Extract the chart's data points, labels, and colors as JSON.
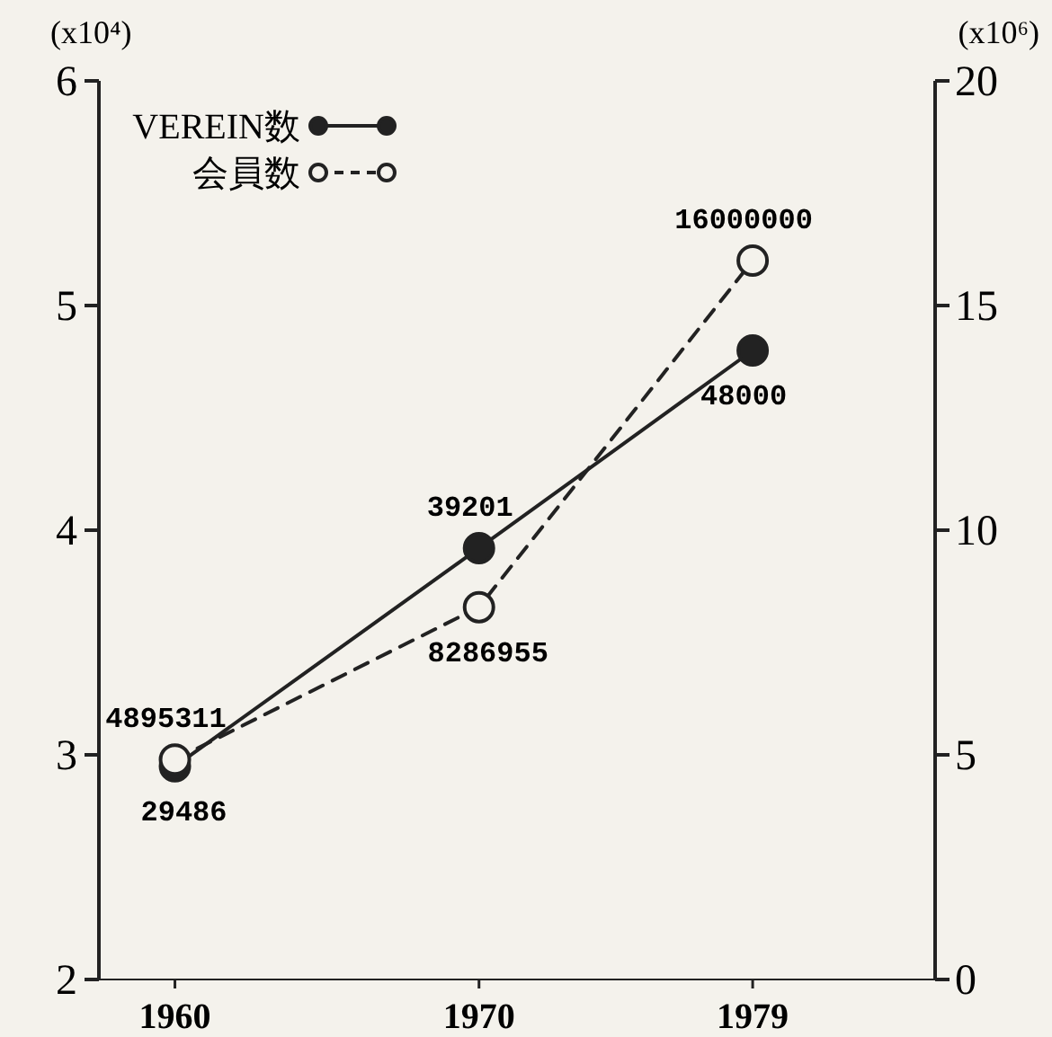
{
  "chart_data": {
    "type": "line",
    "x": [
      1960,
      1970,
      1979
    ],
    "xlim": [
      1957.5,
      1985
    ],
    "xticks": [
      1960,
      1970,
      1979
    ],
    "ylabel": "(x10⁴)",
    "y2label": "(x10⁶)",
    "ylim": [
      2,
      6
    ],
    "yticks": [
      2,
      3,
      4,
      5,
      6
    ],
    "y2lim": [
      0,
      20
    ],
    "y2ticks": [
      0,
      5,
      10,
      15,
      20
    ],
    "series": [
      {
        "name": "VEREIN数",
        "color": "#222222",
        "values": [
          2.9486,
          3.9201,
          4.8
        ],
        "marker": "circle",
        "line_style": "solid"
      },
      {
        "name": "会員数",
        "color": "#222222",
        "values": [
          4.895311,
          8.286955,
          16
        ],
        "axis": "y2",
        "marker": "circle",
        "line_style": "dashed"
      }
    ],
    "annotations": [
      "29486",
      "39201",
      "48000",
      "4895311",
      "8286955",
      "16000000"
    ],
    "legend": "top left",
    "grid": false
  }
}
